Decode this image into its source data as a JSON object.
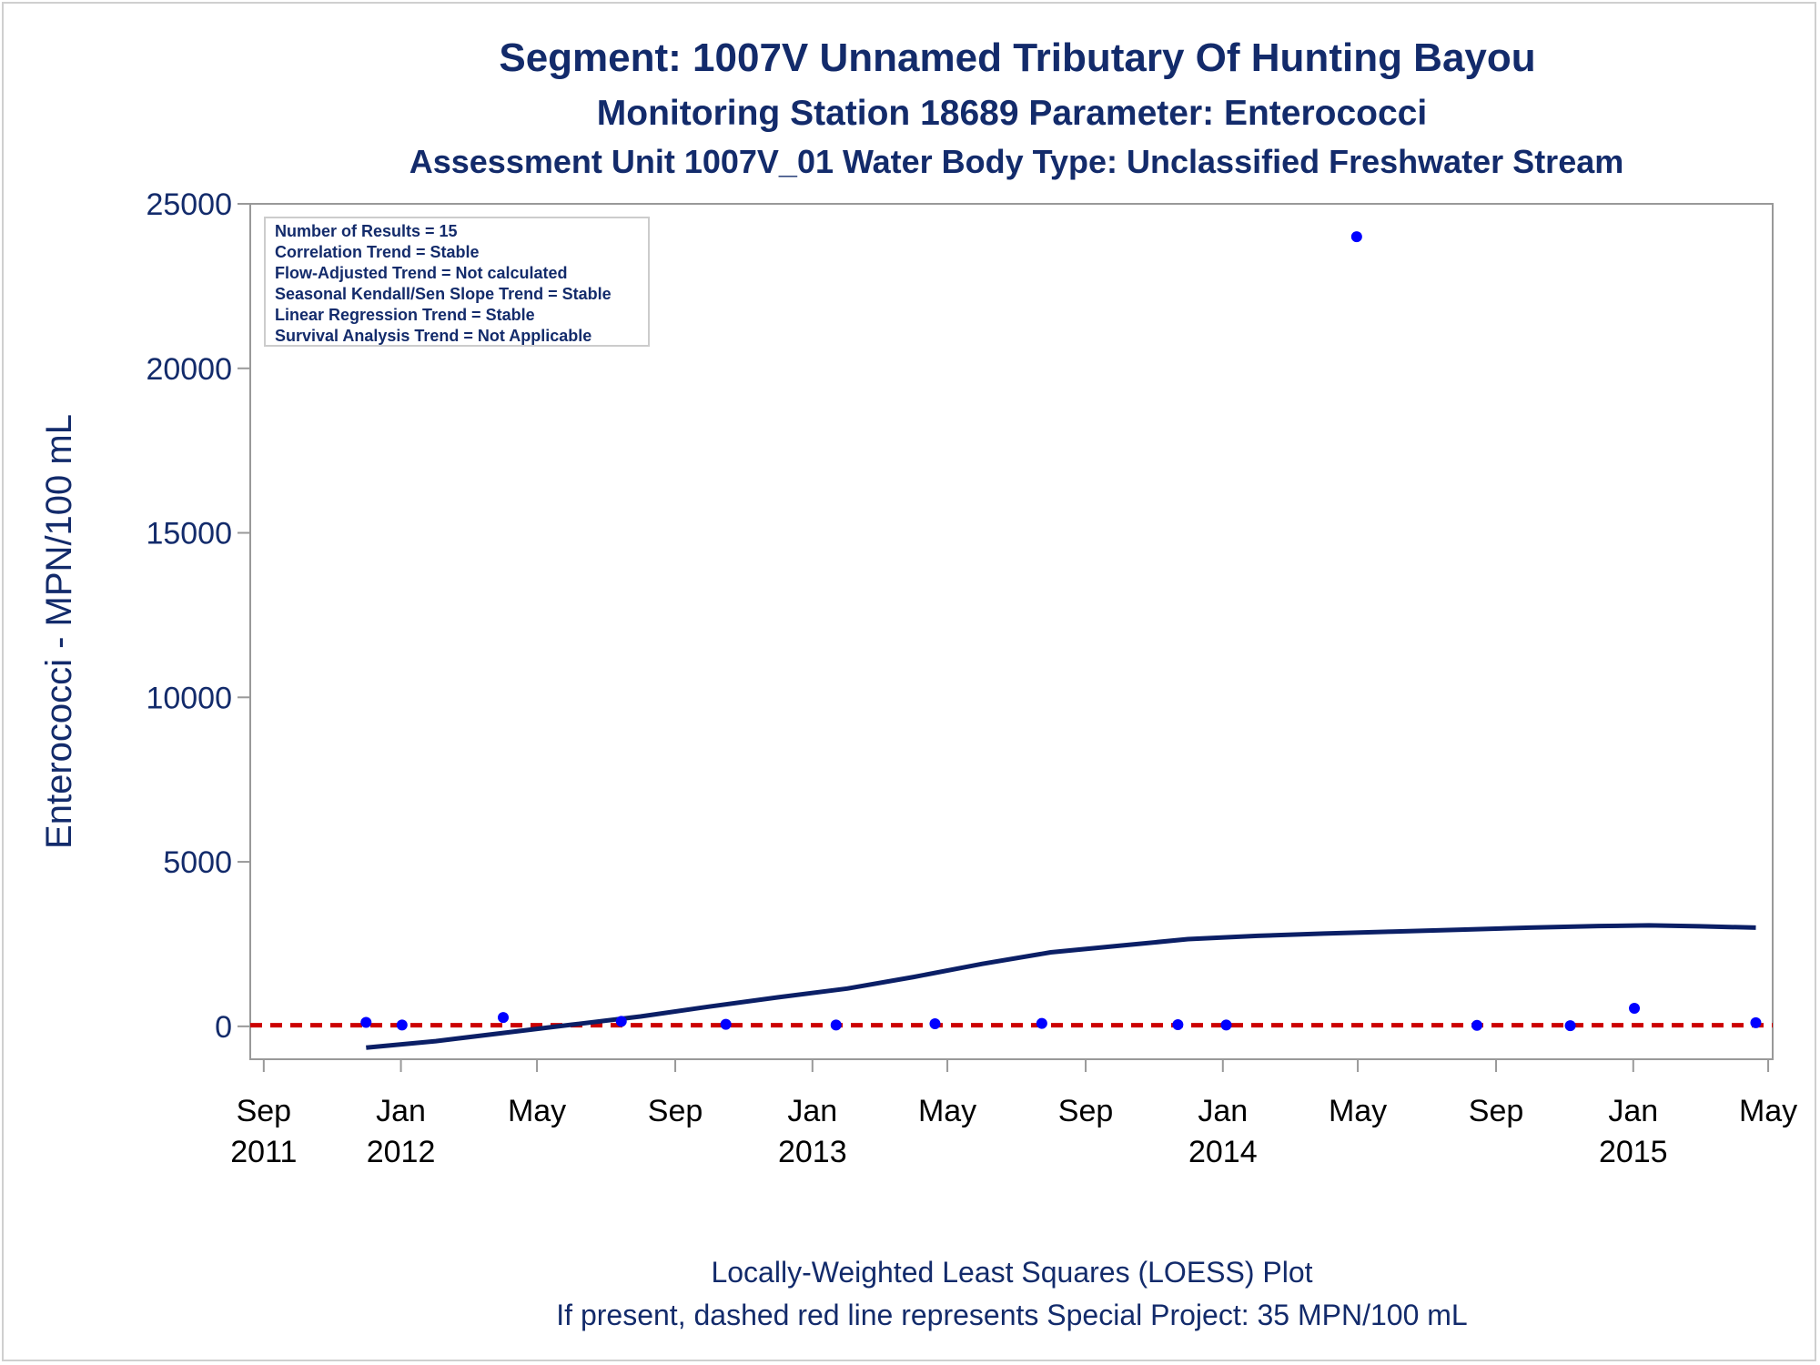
{
  "chart_data": {
    "type": "scatter",
    "title": "Segment: 1007V  Unnamed Tributary Of Hunting Bayou",
    "subtitle": "Monitoring Station 18689 Parameter: Enterococci",
    "subtitle2": "Assessment Unit 1007V_01   Water Body Type: Unclassified Freshwater Stream",
    "ylabel": "Enterococci - MPN/100 mL",
    "footnote1": "Locally-Weighted Least Squares (LOESS) Plot",
    "footnote2": "If present, dashed red line represents Special Project: 35 MPN/100 mL",
    "ylim": [
      -1000,
      25000
    ],
    "xlim": [
      "2011-08-20",
      "2015-05-05"
    ],
    "grid": false,
    "y_ticks": [
      0,
      5000,
      10000,
      15000,
      20000,
      25000
    ],
    "x_ticks": [
      {
        "date": "2011-09-01",
        "month": "Sep",
        "year": "2011"
      },
      {
        "date": "2012-01-01",
        "month": "Jan",
        "year": "2012"
      },
      {
        "date": "2012-05-01",
        "month": "May",
        "year": ""
      },
      {
        "date": "2012-09-01",
        "month": "Sep",
        "year": ""
      },
      {
        "date": "2013-01-01",
        "month": "Jan",
        "year": "2013"
      },
      {
        "date": "2013-05-01",
        "month": "May",
        "year": ""
      },
      {
        "date": "2013-09-01",
        "month": "Sep",
        "year": ""
      },
      {
        "date": "2014-01-01",
        "month": "Jan",
        "year": "2014"
      },
      {
        "date": "2014-05-01",
        "month": "May",
        "year": ""
      },
      {
        "date": "2014-09-01",
        "month": "Sep",
        "year": ""
      },
      {
        "date": "2015-01-01",
        "month": "Jan",
        "year": "2015"
      },
      {
        "date": "2015-05-01",
        "month": "May",
        "year": ""
      }
    ],
    "stats": [
      "Number of Results = 15",
      "Correlation Trend = Stable",
      "Flow-Adjusted Trend = Not calculated",
      "Seasonal Kendall/Sen Slope Trend = Stable",
      "Linear Regression Trend = Stable",
      "Survival Analysis Trend = Not Applicable"
    ],
    "reference_line": {
      "y": 35,
      "color": "#cc0000"
    },
    "points": [
      {
        "date": "2011-12-01",
        "y": 120
      },
      {
        "date": "2012-01-02",
        "y": 40
      },
      {
        "date": "2012-04-01",
        "y": 270
      },
      {
        "date": "2012-07-15",
        "y": 150
      },
      {
        "date": "2012-10-16",
        "y": 60
      },
      {
        "date": "2013-01-22",
        "y": 40
      },
      {
        "date": "2013-04-20",
        "y": 80
      },
      {
        "date": "2013-07-24",
        "y": 90
      },
      {
        "date": "2013-11-22",
        "y": 50
      },
      {
        "date": "2014-01-04",
        "y": 40
      },
      {
        "date": "2014-04-30",
        "y": 24000
      },
      {
        "date": "2014-08-15",
        "y": 30
      },
      {
        "date": "2014-11-06",
        "y": 20
      },
      {
        "date": "2015-01-02",
        "y": 550
      },
      {
        "date": "2015-04-20",
        "y": 110
      }
    ],
    "loess": [
      {
        "date": "2011-12-01",
        "y": -650
      },
      {
        "date": "2012-02-01",
        "y": -450
      },
      {
        "date": "2012-04-01",
        "y": -200
      },
      {
        "date": "2012-06-01",
        "y": 50
      },
      {
        "date": "2012-08-01",
        "y": 300
      },
      {
        "date": "2012-10-01",
        "y": 600
      },
      {
        "date": "2012-12-01",
        "y": 880
      },
      {
        "date": "2013-02-01",
        "y": 1150
      },
      {
        "date": "2013-04-01",
        "y": 1500
      },
      {
        "date": "2013-06-01",
        "y": 1900
      },
      {
        "date": "2013-08-01",
        "y": 2250
      },
      {
        "date": "2013-10-01",
        "y": 2450
      },
      {
        "date": "2013-12-01",
        "y": 2650
      },
      {
        "date": "2014-02-01",
        "y": 2750
      },
      {
        "date": "2014-04-01",
        "y": 2820
      },
      {
        "date": "2014-06-01",
        "y": 2880
      },
      {
        "date": "2014-08-01",
        "y": 2940
      },
      {
        "date": "2014-10-01",
        "y": 3000
      },
      {
        "date": "2014-12-01",
        "y": 3050
      },
      {
        "date": "2015-01-15",
        "y": 3070
      },
      {
        "date": "2015-03-01",
        "y": 3040
      },
      {
        "date": "2015-04-20",
        "y": 3000
      }
    ],
    "colors": {
      "text": "#132b6b",
      "points": "#0000ff",
      "loess": "#0b1f66",
      "axis": "#999999",
      "tick_text": "#000000"
    }
  }
}
